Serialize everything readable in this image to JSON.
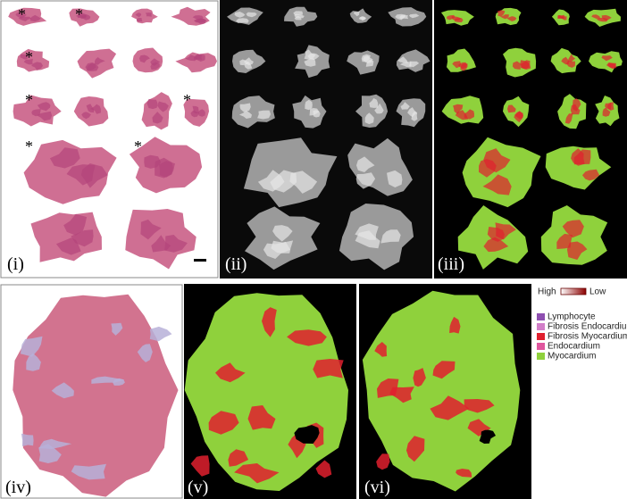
{
  "panels": [
    {
      "label": "(i)"
    },
    {
      "label": "(ii)"
    },
    {
      "label": "(iii)"
    },
    {
      "label": "(iv)"
    },
    {
      "label": "(v)"
    },
    {
      "label": "(vi)"
    }
  ],
  "asterisk": "*",
  "legend": {
    "high": "High",
    "low": "Low",
    "items": [
      {
        "label": "Lymphocyte",
        "color": "#8e4fb0"
      },
      {
        "label": "Fibrosis Endocardium",
        "color": "#d27ec8"
      },
      {
        "label": "Fibrosis Myocardium",
        "color": "#e0202e"
      },
      {
        "label": "Endocardium",
        "color": "#e0569e"
      },
      {
        "label": "Myocardium",
        "color": "#8fd13c"
      }
    ]
  }
}
